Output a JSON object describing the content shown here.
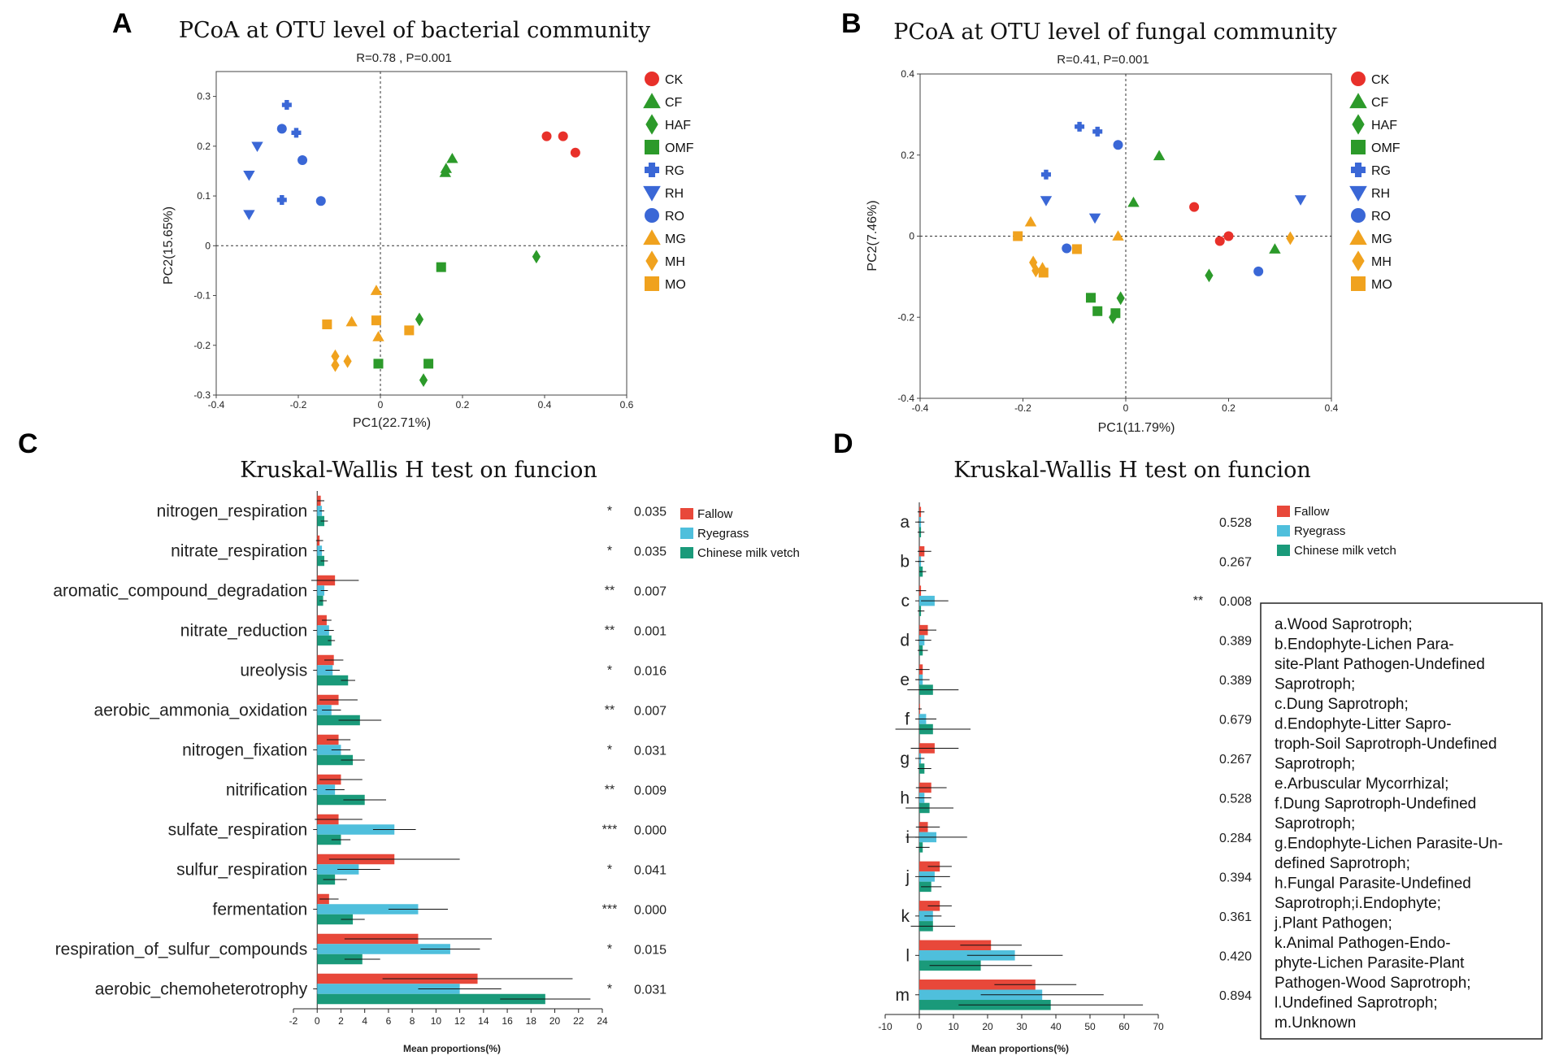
{
  "panels": {
    "A": "A",
    "B": "B",
    "C": "C",
    "D": "D"
  },
  "group_styles": [
    {
      "name": "CK",
      "color": "#e8302a",
      "shape": "circle"
    },
    {
      "name": "CF",
      "color": "#2c9a2a",
      "shape": "triangle"
    },
    {
      "name": "HAF",
      "color": "#2c9a2a",
      "shape": "diamond"
    },
    {
      "name": "OMF",
      "color": "#2c9a2a",
      "shape": "square"
    },
    {
      "name": "RG",
      "color": "#3a67d6",
      "shape": "plus"
    },
    {
      "name": "RH",
      "color": "#3a67d6",
      "shape": "triangle-down"
    },
    {
      "name": "RO",
      "color": "#3a67d6",
      "shape": "circle"
    },
    {
      "name": "MG",
      "color": "#f0a21e",
      "shape": "triangle"
    },
    {
      "name": "MH",
      "color": "#f0a21e",
      "shape": "diamond"
    },
    {
      "name": "MO",
      "color": "#f0a21e",
      "shape": "square"
    }
  ],
  "bar_colors": {
    "Fallow": "#e8483a",
    "Ryegrass": "#4fbfdc",
    "Chinese milk vetch": "#1a9a7a"
  },
  "chart_data": [
    {
      "id": "A",
      "type": "scatter",
      "title": "PCoA at OTU level of bacterial community",
      "stat": "R=0.78 , P=0.001",
      "xlabel": "PC1(22.71%)",
      "ylabel": "PC2(15.65%)",
      "xlim": [
        -0.4,
        0.6
      ],
      "ylim": [
        -0.3,
        0.35
      ],
      "xticks": [
        -0.4,
        -0.2,
        0,
        0.2,
        0.4,
        0.6
      ],
      "xtick_labels": [
        "-0.4",
        "-0.2",
        "0",
        "0.2",
        "0.4",
        "0.6"
      ],
      "yticks": [
        -0.3,
        -0.2,
        -0.1,
        0,
        0.1,
        0.2,
        0.3
      ],
      "ytick_labels": [
        "-0.3",
        "-0.2",
        "-0.1",
        "0",
        "0.1",
        "0.2",
        "0.3"
      ],
      "points": [
        {
          "g": "CK",
          "x": 0.405,
          "y": 0.22
        },
        {
          "g": "CK",
          "x": 0.445,
          "y": 0.22
        },
        {
          "g": "CK",
          "x": 0.475,
          "y": 0.187
        },
        {
          "g": "CF",
          "x": 0.175,
          "y": 0.175
        },
        {
          "g": "CF",
          "x": 0.16,
          "y": 0.155
        },
        {
          "g": "CF",
          "x": 0.158,
          "y": 0.147
        },
        {
          "g": "HAF",
          "x": 0.38,
          "y": -0.022
        },
        {
          "g": "HAF",
          "x": 0.095,
          "y": -0.148
        },
        {
          "g": "HAF",
          "x": 0.105,
          "y": -0.27
        },
        {
          "g": "OMF",
          "x": 0.148,
          "y": -0.043
        },
        {
          "g": "OMF",
          "x": 0.117,
          "y": -0.237
        },
        {
          "g": "OMF",
          "x": -0.005,
          "y": -0.237
        },
        {
          "g": "RG",
          "x": -0.228,
          "y": 0.283
        },
        {
          "g": "RG",
          "x": -0.205,
          "y": 0.227
        },
        {
          "g": "RG",
          "x": -0.24,
          "y": 0.092
        },
        {
          "g": "RH",
          "x": -0.3,
          "y": 0.2
        },
        {
          "g": "RH",
          "x": -0.32,
          "y": 0.142
        },
        {
          "g": "RH",
          "x": -0.32,
          "y": 0.063
        },
        {
          "g": "RO",
          "x": -0.24,
          "y": 0.235
        },
        {
          "g": "RO",
          "x": -0.19,
          "y": 0.172
        },
        {
          "g": "RO",
          "x": -0.145,
          "y": 0.09
        },
        {
          "g": "MG",
          "x": -0.01,
          "y": -0.09
        },
        {
          "g": "MG",
          "x": -0.07,
          "y": -0.153
        },
        {
          "g": "MG",
          "x": -0.005,
          "y": -0.183
        },
        {
          "g": "MH",
          "x": -0.11,
          "y": -0.222
        },
        {
          "g": "MH",
          "x": -0.08,
          "y": -0.232
        },
        {
          "g": "MH",
          "x": -0.11,
          "y": -0.24
        },
        {
          "g": "MO",
          "x": -0.13,
          "y": -0.158
        },
        {
          "g": "MO",
          "x": -0.01,
          "y": -0.15
        },
        {
          "g": "MO",
          "x": 0.07,
          "y": -0.17
        }
      ]
    },
    {
      "id": "B",
      "type": "scatter",
      "title": "PCoA at OTU level of fungal community",
      "stat": "R=0.41, P=0.001",
      "xlabel": "PC1(11.79%)",
      "ylabel": "PC2(7.46%)",
      "xlim": [
        -0.4,
        0.4
      ],
      "ylim": [
        -0.4,
        0.4
      ],
      "xticks": [
        -0.4,
        -0.2,
        0,
        0.2,
        0.4
      ],
      "xtick_labels": [
        "-0.4",
        "-0.2",
        "0",
        "0.2",
        "0.4"
      ],
      "yticks": [
        -0.4,
        -0.2,
        0,
        0.2,
        0.4
      ],
      "ytick_labels": [
        "-0.4",
        "-0.2",
        "0",
        "0.2",
        "0.4"
      ],
      "points": [
        {
          "g": "CK",
          "x": 0.133,
          "y": 0.072
        },
        {
          "g": "CK",
          "x": 0.183,
          "y": -0.012
        },
        {
          "g": "CK",
          "x": 0.2,
          "y": 0.0
        },
        {
          "g": "CF",
          "x": 0.065,
          "y": 0.198
        },
        {
          "g": "CF",
          "x": 0.015,
          "y": 0.083
        },
        {
          "g": "CF",
          "x": 0.29,
          "y": -0.032
        },
        {
          "g": "HAF",
          "x": 0.162,
          "y": -0.097
        },
        {
          "g": "HAF",
          "x": -0.01,
          "y": -0.153
        },
        {
          "g": "HAF",
          "x": -0.025,
          "y": -0.2
        },
        {
          "g": "OMF",
          "x": -0.068,
          "y": -0.152
        },
        {
          "g": "OMF",
          "x": -0.055,
          "y": -0.185
        },
        {
          "g": "OMF",
          "x": -0.02,
          "y": -0.19
        },
        {
          "g": "RG",
          "x": -0.09,
          "y": 0.27
        },
        {
          "g": "RG",
          "x": -0.055,
          "y": 0.258
        },
        {
          "g": "RG",
          "x": -0.155,
          "y": 0.152
        },
        {
          "g": "RH",
          "x": -0.155,
          "y": 0.088
        },
        {
          "g": "RH",
          "x": -0.06,
          "y": 0.045
        },
        {
          "g": "RH",
          "x": 0.34,
          "y": 0.09
        },
        {
          "g": "RO",
          "x": -0.015,
          "y": 0.225
        },
        {
          "g": "RO",
          "x": -0.115,
          "y": -0.03
        },
        {
          "g": "RO",
          "x": 0.258,
          "y": -0.087
        },
        {
          "g": "MG",
          "x": -0.185,
          "y": 0.035
        },
        {
          "g": "MG",
          "x": -0.015,
          "y": 0.0
        },
        {
          "g": "MG",
          "x": -0.162,
          "y": -0.078
        },
        {
          "g": "MH",
          "x": -0.18,
          "y": -0.065
        },
        {
          "g": "MH",
          "x": -0.175,
          "y": -0.085
        },
        {
          "g": "MH",
          "x": 0.32,
          "y": -0.005
        },
        {
          "g": "MO",
          "x": -0.21,
          "y": 0.0
        },
        {
          "g": "MO",
          "x": -0.095,
          "y": -0.032
        },
        {
          "g": "MO",
          "x": -0.16,
          "y": -0.09
        }
      ]
    },
    {
      "id": "C",
      "type": "bar",
      "title": "Kruskal-Wallis H test on funcion",
      "xlabel": "Mean proportions(%)",
      "xlim": [
        -2,
        24
      ],
      "xticks": [
        -2,
        0,
        2,
        4,
        6,
        8,
        10,
        12,
        14,
        16,
        18,
        20,
        22,
        24
      ],
      "xtick_labels": [
        "-2",
        "0",
        "2",
        "4",
        "6",
        "8",
        "10",
        "12",
        "14",
        "16",
        "18",
        "20",
        "22",
        "24"
      ],
      "series_names": [
        "Fallow",
        "Ryegrass",
        "Chinese milk vetch"
      ],
      "categories": [
        "nitrogen_respiration",
        "nitrate_respiration",
        "aromatic_compound_degradation",
        "nitrate_reduction",
        "ureolysis",
        "aerobic_ammonia_oxidation",
        "nitrogen_fixation",
        "nitrification",
        "sulfate_respiration",
        "sulfur_respiration",
        "fermentation",
        "respiration_of_sulfur_compounds",
        "aerobic_chemoheterotrophy"
      ],
      "values": [
        [
          0.3,
          0.4,
          0.6
        ],
        [
          0.2,
          0.4,
          0.6
        ],
        [
          1.5,
          0.6,
          0.5
        ],
        [
          0.8,
          1.0,
          1.2
        ],
        [
          1.4,
          1.3,
          2.6
        ],
        [
          1.8,
          1.2,
          3.6
        ],
        [
          1.8,
          2.0,
          3.0
        ],
        [
          2.0,
          1.5,
          4.0
        ],
        [
          1.8,
          6.5,
          2.0
        ],
        [
          6.5,
          3.5,
          1.5
        ],
        [
          1.0,
          8.5,
          3.0
        ],
        [
          8.5,
          11.2,
          3.8
        ],
        [
          13.5,
          12.0,
          19.2
        ]
      ],
      "errors": [
        [
          0.3,
          0.2,
          0.3
        ],
        [
          0.3,
          0.2,
          0.3
        ],
        [
          2.0,
          0.3,
          0.3
        ],
        [
          0.4,
          0.4,
          0.3
        ],
        [
          0.8,
          0.6,
          0.6
        ],
        [
          1.6,
          0.8,
          1.8
        ],
        [
          1.0,
          0.8,
          1.0
        ],
        [
          1.8,
          0.8,
          1.8
        ],
        [
          2.0,
          1.8,
          0.8
        ],
        [
          5.5,
          1.8,
          1.0
        ],
        [
          0.8,
          2.5,
          1.0
        ],
        [
          6.2,
          2.5,
          1.5
        ],
        [
          8.0,
          3.5,
          3.8
        ]
      ],
      "stars": [
        "*",
        "*",
        "**",
        "**",
        "*",
        "**",
        "*",
        "**",
        "***",
        "*",
        "***",
        "*",
        "*"
      ],
      "pvalues": [
        "0.035",
        "0.035",
        "0.007",
        "0.001",
        "0.016",
        "0.007",
        "0.031",
        "0.009",
        "0.000",
        "0.041",
        "0.000",
        "0.015",
        "0.031"
      ]
    },
    {
      "id": "D",
      "type": "bar",
      "title": "Kruskal-Wallis H test on funcion",
      "xlabel": "Mean proportions(%)",
      "xlim": [
        -10,
        70
      ],
      "xticks": [
        -10,
        0,
        10,
        20,
        30,
        40,
        50,
        60,
        70
      ],
      "xtick_labels": [
        "-10",
        "0",
        "10",
        "20",
        "30",
        "40",
        "50",
        "60",
        "70"
      ],
      "series_names": [
        "Fallow",
        "Ryegrass",
        "Chinese milk vetch"
      ],
      "categories": [
        "a",
        "b",
        "c",
        "d",
        "e",
        "f",
        "g",
        "h",
        "i",
        "j",
        "k",
        "l",
        "m"
      ],
      "values": [
        [
          0.5,
          0.5,
          0.5
        ],
        [
          1.5,
          0.5,
          1.0
        ],
        [
          0.5,
          4.5,
          0.5
        ],
        [
          2.5,
          1.5,
          1.0
        ],
        [
          1.0,
          1.0,
          4.0
        ],
        [
          0.2,
          2.0,
          4.0
        ],
        [
          4.5,
          0.5,
          1.5
        ],
        [
          3.5,
          1.5,
          3.0
        ],
        [
          2.5,
          5.0,
          1.0
        ],
        [
          6.0,
          4.5,
          3.5
        ],
        [
          6.0,
          4.0,
          4.0
        ],
        [
          21.0,
          28.0,
          18.0
        ],
        [
          34.0,
          36.0,
          38.5
        ]
      ],
      "errors": [
        [
          1.0,
          1.0,
          1.0
        ],
        [
          2.0,
          1.0,
          1.0
        ],
        [
          1.5,
          4.0,
          1.0
        ],
        [
          2.5,
          2.0,
          1.5
        ],
        [
          2.0,
          2.0,
          7.5
        ],
        [
          0.5,
          3.0,
          11.0
        ],
        [
          7.0,
          1.0,
          2.0
        ],
        [
          4.5,
          2.0,
          7.0
        ],
        [
          3.5,
          9.0,
          2.0
        ],
        [
          3.5,
          4.5,
          3.0
        ],
        [
          3.5,
          2.5,
          6.5
        ],
        [
          9.0,
          14.0,
          15.0
        ],
        [
          12.0,
          18.0,
          27.0
        ]
      ],
      "stars": [
        "",
        "",
        "**",
        "",
        "",
        "",
        "",
        "",
        "",
        "",
        "",
        "",
        ""
      ],
      "pvalues": [
        "0.528",
        "0.267",
        "0.008",
        "0.389",
        "0.389",
        "0.679",
        "0.267",
        "0.528",
        "0.284",
        "0.394",
        "0.361",
        "0.420",
        "0.894"
      ],
      "note_lines": [
        "a.Wood Saprotroph;",
        "b.Endophyte-Lichen Para-",
        "site-Plant Pathogen-Undefined",
        "Saprotroph;",
        "c.Dung Saprotroph;",
        "d.Endophyte-Litter Sapro-",
        "troph-Soil Saprotroph-Undefined",
        "Saprotroph;",
        "e.Arbuscular Mycorrhizal;",
        "f.Dung Saprotroph-Undefined",
        "Saprotroph;",
        "g.Endophyte-Lichen Parasite-Un-",
        "defined Saprotroph;",
        "h.Fungal Parasite-Undefined",
        "Saprotroph;i.Endophyte;",
        "j.Plant Pathogen;",
        "k.Animal Pathogen-Endo-",
        "phyte-Lichen Parasite-Plant",
        "Pathogen-Wood Saprotroph;",
        "l.Undefined Saprotroph;",
        "m.Unknown"
      ]
    }
  ]
}
